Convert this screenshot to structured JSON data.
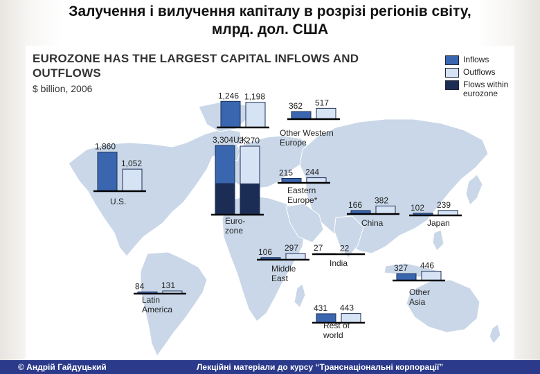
{
  "slide": {
    "title_line1": "Залучення і вилучення капіталу в розрізі регіонів світу,",
    "title_line2": "млрд. дол. США",
    "footer_left": "© Андрій Гайдуцький",
    "footer_right": "Лекційні матеріали до курсу “Транснаціональні корпорації”"
  },
  "colors": {
    "inflows": "#3a66b0",
    "outflows": "#d6e3f5",
    "flows_within": "#1c2d55",
    "land": "#c9d7e8",
    "axis": "#000000"
  },
  "chart_data": {
    "type": "bar",
    "title_line1": "EUROZONE HAS THE LARGEST CAPITAL INFLOWS AND",
    "title_line2": "OUTFLOWS",
    "subtitle": "$ billion, 2006",
    "legend_placement": "top-right",
    "legend": [
      "Inflows",
      "Outflows",
      "Flows within eurozone"
    ],
    "regions": [
      {
        "name": "U.K.",
        "inflows": 1246,
        "outflows": 1198,
        "inflow_label": "1,246",
        "outflow_label": "1,198"
      },
      {
        "name": "Other Western Europe",
        "inflows": 362,
        "outflows": 517,
        "inflow_label": "362",
        "outflow_label": "517"
      },
      {
        "name": "U.S.",
        "inflows": 1860,
        "outflows": 1052,
        "inflow_label": "1,860",
        "outflow_label": "1,052"
      },
      {
        "name": "Eurozone",
        "inflows": 3304,
        "outflows": 3270,
        "inflow_label": "3,304",
        "outflow_label": "3,270"
      },
      {
        "name": "Eastern Europe*",
        "inflows": 215,
        "outflows": 244,
        "inflow_label": "215",
        "outflow_label": "244"
      },
      {
        "name": "China",
        "inflows": 166,
        "outflows": 382,
        "inflow_label": "166",
        "outflow_label": "382"
      },
      {
        "name": "Japan",
        "inflows": 102,
        "outflows": 239,
        "inflow_label": "102",
        "outflow_label": "239"
      },
      {
        "name": "Middle East",
        "inflows": 106,
        "outflows": 297,
        "inflow_label": "106",
        "outflow_label": "297"
      },
      {
        "name": "India",
        "inflows": 27,
        "outflows": 22,
        "inflow_label": "27",
        "outflow_label": "22"
      },
      {
        "name": "Other Asia",
        "inflows": 327,
        "outflows": 446,
        "inflow_label": "327",
        "outflow_label": "446"
      },
      {
        "name": "Latin America",
        "inflows": 84,
        "outflows": 131,
        "inflow_label": "84",
        "outflow_label": "131"
      },
      {
        "name": "Rest of world",
        "inflows": 431,
        "outflows": 443,
        "inflow_label": "431",
        "outflow_label": "443"
      }
    ]
  }
}
